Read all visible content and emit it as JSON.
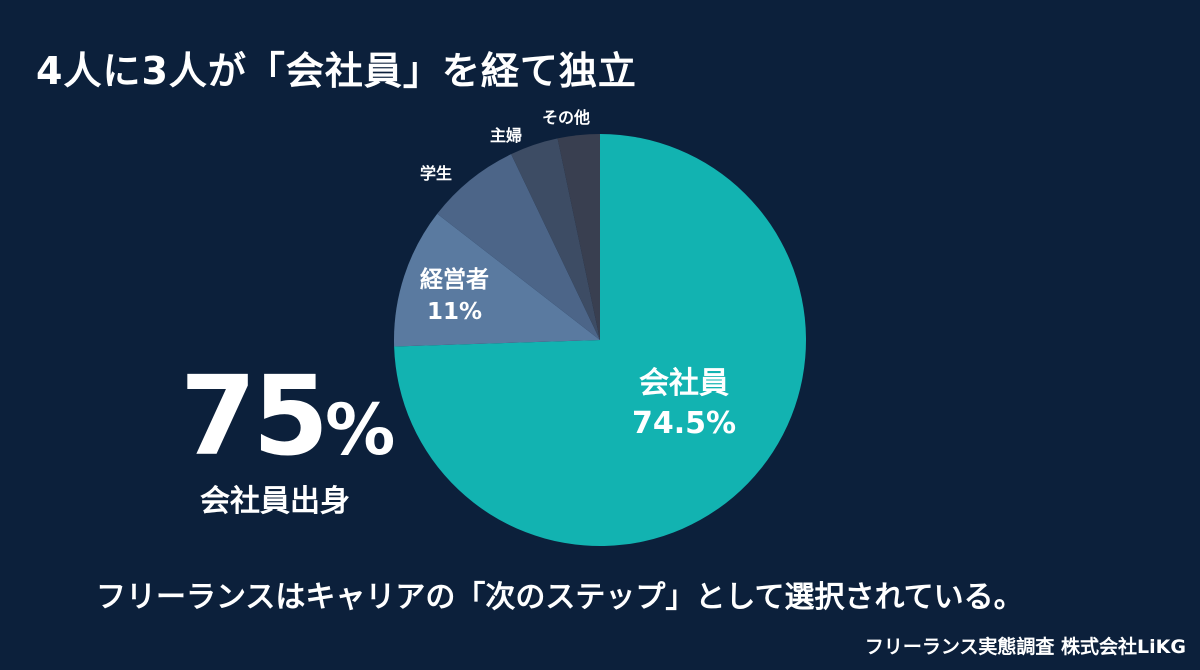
{
  "title": "4人に3人が「会社員」を経て独立",
  "chart_data": {
    "type": "pie",
    "title": "4人に3人が「会社員」を経て独立",
    "categories": [
      "会社員",
      "経営者",
      "学生",
      "主婦",
      "その他"
    ],
    "values": [
      74.5,
      11,
      7.4,
      3.8,
      3.3
    ],
    "labels": [
      "会社員 74.5%",
      "経営者 11%",
      "学生",
      "主婦",
      "その他"
    ],
    "colors": [
      "#12b3b1",
      "#5a7aa0",
      "#4c6588",
      "#3d4c64",
      "#393f50"
    ],
    "start_angle": "12 o'clock, clockwise"
  },
  "labels": {
    "kaishain": "会社員",
    "kaishain_pct": "74.5%",
    "keieisha": "経営者",
    "keieisha_pct": "11%",
    "gakusei": "学生",
    "shufu": "主婦",
    "sonota": "その他"
  },
  "highlight": {
    "value": "75",
    "unit": "%",
    "caption": "会社員出身"
  },
  "footer": {
    "message": "フリーランスはキャリアの「次のステップ」として選択されている。",
    "source": "フリーランス実態調査  株式会社LiKG"
  }
}
